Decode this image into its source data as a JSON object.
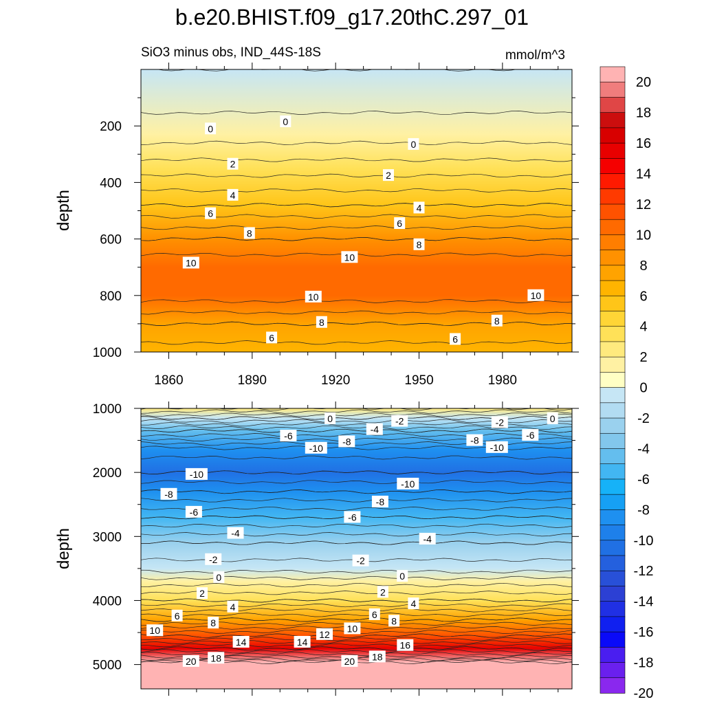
{
  "chart_data": [
    {
      "type": "heatmap",
      "title": "b.e20.BHIST.f09_g17.20thC.297_01",
      "subtitle_left": "SiO3 minus obs, IND_44S-18S",
      "subtitle_right": "mmol/m^3",
      "ylabel": "depth",
      "x_ticks": [
        "1860",
        "1890",
        "1920",
        "1950",
        "1980"
      ],
      "y_ticks": [
        "200",
        "400",
        "600",
        "800",
        "1000"
      ],
      "xlim": [
        1850,
        2005
      ],
      "ylim": [
        0,
        1000
      ],
      "y_reversed": true,
      "bands": [
        {
          "depth": 0,
          "value": -1
        },
        {
          "depth": 230,
          "value": 0.5
        },
        {
          "depth": 350,
          "value": 2.5
        },
        {
          "depth": 480,
          "value": 5.0
        },
        {
          "depth": 600,
          "value": 8.0
        },
        {
          "depth": 700,
          "value": 9.8
        },
        {
          "depth": 800,
          "value": 9.5
        },
        {
          "depth": 900,
          "value": 7.0
        },
        {
          "depth": 1000,
          "value": 5.5
        }
      ],
      "contour_labels": [
        {
          "text": "0",
          "x": 1875,
          "depth": 210
        },
        {
          "text": "0",
          "x": 1902,
          "depth": 185
        },
        {
          "text": "0",
          "x": 1948,
          "depth": 265
        },
        {
          "text": "2",
          "x": 1883,
          "depth": 335
        },
        {
          "text": "2",
          "x": 1939,
          "depth": 375
        },
        {
          "text": "4",
          "x": 1883,
          "depth": 445
        },
        {
          "text": "4",
          "x": 1950,
          "depth": 490
        },
        {
          "text": "6",
          "x": 1875,
          "depth": 510
        },
        {
          "text": "6",
          "x": 1943,
          "depth": 545
        },
        {
          "text": "8",
          "x": 1889,
          "depth": 580
        },
        {
          "text": "8",
          "x": 1950,
          "depth": 620
        },
        {
          "text": "10",
          "x": 1868,
          "depth": 685
        },
        {
          "text": "10",
          "x": 1925,
          "depth": 665
        },
        {
          "text": "10",
          "x": 1912,
          "depth": 805
        },
        {
          "text": "10",
          "x": 1992,
          "depth": 800
        },
        {
          "text": "8",
          "x": 1915,
          "depth": 895
        },
        {
          "text": "8",
          "x": 1978,
          "depth": 890
        },
        {
          "text": "6",
          "x": 1897,
          "depth": 950
        },
        {
          "text": "6",
          "x": 1963,
          "depth": 955
        }
      ]
    },
    {
      "type": "heatmap",
      "ylabel": "depth",
      "y_ticks": [
        "1000",
        "2000",
        "3000",
        "4000",
        "5000"
      ],
      "xlim": [
        1850,
        2005
      ],
      "ylim": [
        1000,
        5380
      ],
      "y_reversed": true,
      "bands": [
        {
          "depth": 1000,
          "value": 2.0
        },
        {
          "depth": 1150,
          "value": -1.0
        },
        {
          "depth": 1350,
          "value": -5.0
        },
        {
          "depth": 1650,
          "value": -9.5
        },
        {
          "depth": 2000,
          "value": -11.0
        },
        {
          "depth": 2300,
          "value": -9.0
        },
        {
          "depth": 2700,
          "value": -6.0
        },
        {
          "depth": 3100,
          "value": -3.0
        },
        {
          "depth": 3500,
          "value": -1.5
        },
        {
          "depth": 3700,
          "value": 0.5
        },
        {
          "depth": 4000,
          "value": 3.0
        },
        {
          "depth": 4300,
          "value": 7.0
        },
        {
          "depth": 4550,
          "value": 11.0
        },
        {
          "depth": 4750,
          "value": 15.0
        },
        {
          "depth": 4900,
          "value": 18.5
        },
        {
          "depth": 4960,
          "value": 21.0
        },
        {
          "depth": 5380,
          "value": 21.0
        }
      ],
      "contour_labels": [
        {
          "text": "0",
          "x": 1918,
          "depth": 1160
        },
        {
          "text": "-2",
          "x": 1943,
          "depth": 1200
        },
        {
          "text": "-4",
          "x": 1934,
          "depth": 1330
        },
        {
          "text": "-2",
          "x": 1979,
          "depth": 1220
        },
        {
          "text": "0",
          "x": 1998,
          "depth": 1160
        },
        {
          "text": "-6",
          "x": 1903,
          "depth": 1430
        },
        {
          "text": "-6",
          "x": 1990,
          "depth": 1420
        },
        {
          "text": "-8",
          "x": 1924,
          "depth": 1520
        },
        {
          "text": "-8",
          "x": 1970,
          "depth": 1500
        },
        {
          "text": "-10",
          "x": 1913,
          "depth": 1620
        },
        {
          "text": "-10",
          "x": 1978,
          "depth": 1610
        },
        {
          "text": "-10",
          "x": 1870,
          "depth": 2030
        },
        {
          "text": "-10",
          "x": 1946,
          "depth": 2180
        },
        {
          "text": "-8",
          "x": 1860,
          "depth": 2340
        },
        {
          "text": "-8",
          "x": 1936,
          "depth": 2460
        },
        {
          "text": "-6",
          "x": 1869,
          "depth": 2620
        },
        {
          "text": "-6",
          "x": 1926,
          "depth": 2700
        },
        {
          "text": "-4",
          "x": 1884,
          "depth": 2950
        },
        {
          "text": "-4",
          "x": 1953,
          "depth": 3040
        },
        {
          "text": "-2",
          "x": 1876,
          "depth": 3360
        },
        {
          "text": "-2",
          "x": 1929,
          "depth": 3380
        },
        {
          "text": "0",
          "x": 1878,
          "depth": 3640
        },
        {
          "text": "0",
          "x": 1944,
          "depth": 3620
        },
        {
          "text": "2",
          "x": 1872,
          "depth": 3890
        },
        {
          "text": "2",
          "x": 1937,
          "depth": 3870
        },
        {
          "text": "4",
          "x": 1883,
          "depth": 4100
        },
        {
          "text": "4",
          "x": 1948,
          "depth": 4050
        },
        {
          "text": "6",
          "x": 1863,
          "depth": 4240
        },
        {
          "text": "6",
          "x": 1934,
          "depth": 4220
        },
        {
          "text": "8",
          "x": 1876,
          "depth": 4350
        },
        {
          "text": "8",
          "x": 1941,
          "depth": 4320
        },
        {
          "text": "10",
          "x": 1855,
          "depth": 4470
        },
        {
          "text": "10",
          "x": 1926,
          "depth": 4440
        },
        {
          "text": "12",
          "x": 1916,
          "depth": 4530
        },
        {
          "text": "14",
          "x": 1886,
          "depth": 4650
        },
        {
          "text": "14",
          "x": 1908,
          "depth": 4650
        },
        {
          "text": "16",
          "x": 1945,
          "depth": 4700
        },
        {
          "text": "18",
          "x": 1877,
          "depth": 4900
        },
        {
          "text": "18",
          "x": 1935,
          "depth": 4880
        },
        {
          "text": "20",
          "x": 1868,
          "depth": 4950
        },
        {
          "text": "20",
          "x": 1925,
          "depth": 4950
        }
      ]
    }
  ],
  "colorbar": {
    "labels": [
      "20",
      "18",
      "16",
      "14",
      "12",
      "10",
      "8",
      "6",
      "4",
      "2",
      "0",
      "-2",
      "-4",
      "-6",
      "-8",
      "-10",
      "-12",
      "-14",
      "-16",
      "-18",
      "-20"
    ],
    "colors_top_to_bottom": [
      "#ffb3b3",
      "#f07d7d",
      "#e04646",
      "#cc0e0e",
      "#d80000",
      "#e80000",
      "#f50000",
      "#ff1a00",
      "#ff3a00",
      "#ff5200",
      "#ff6a00",
      "#ff7e00",
      "#ff9100",
      "#ffa300",
      "#ffb400",
      "#ffc518",
      "#ffd536",
      "#ffe158",
      "#ffea7e",
      "#fff1a3",
      "#ffffc4",
      "#c6e6f5",
      "#b2dcf2",
      "#9ad1ee",
      "#82c7ec",
      "#64beee",
      "#42b6f2",
      "#16b2f8",
      "#16a0f4",
      "#1e90f0",
      "#1e80ea",
      "#2070e4",
      "#2460de",
      "#2850d8",
      "#2c40d4",
      "#2030e4",
      "#1020f0",
      "#0a0af8",
      "#4a1ef0",
      "#6a20ee",
      "#8a28ee"
    ]
  }
}
